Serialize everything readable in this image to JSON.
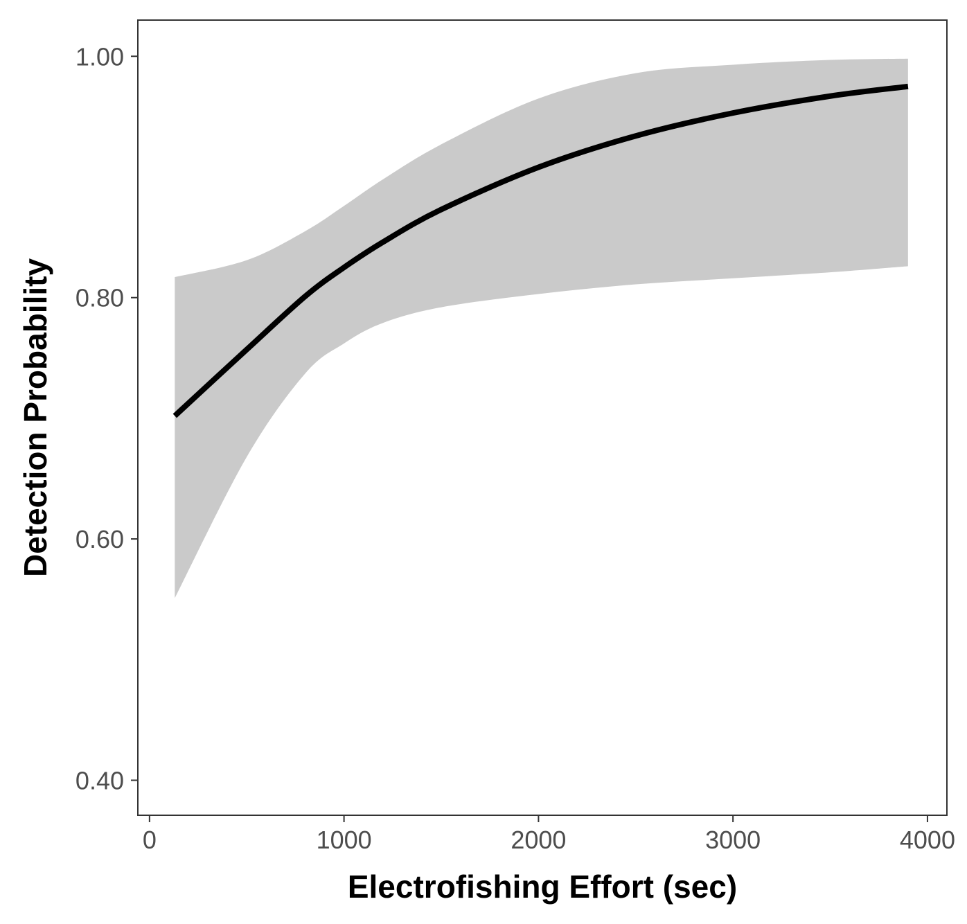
{
  "chart_data": {
    "type": "line",
    "title": "",
    "xlabel": "Electrofishing Effort (sec)",
    "ylabel": "Detection Probability",
    "xlim": [
      -60,
      4100
    ],
    "ylim": [
      0.371,
      1.03
    ],
    "x_ticks": [
      0,
      1000,
      2000,
      3000,
      4000
    ],
    "y_ticks": [
      0.4,
      0.6,
      0.8,
      1.0
    ],
    "x_tick_labels": [
      "0",
      "1000",
      "2000",
      "3000",
      "4000"
    ],
    "y_tick_labels": [
      "0.40",
      "0.60",
      "0.80",
      "1.00"
    ],
    "grid": false,
    "legend": "none",
    "colors": {
      "line": "#000000",
      "ribbon": "#cacaca",
      "panel_border": "#333333",
      "tick_label": "#4d4d4d"
    },
    "series": [
      {
        "x": [
          130,
          500,
          800,
          1000,
          1200,
          1500,
          2000,
          2500,
          3000,
          3500,
          3900
        ],
        "y": [
          0.702,
          0.757,
          0.801,
          0.825,
          0.846,
          0.873,
          0.908,
          0.934,
          0.953,
          0.967,
          0.975
        ],
        "ci_lower": [
          0.551,
          0.668,
          0.737,
          0.762,
          0.779,
          0.792,
          0.803,
          0.811,
          0.816,
          0.821,
          0.826
        ],
        "ci_upper": [
          0.817,
          0.831,
          0.855,
          0.876,
          0.898,
          0.927,
          0.965,
          0.986,
          0.993,
          0.997,
          0.998
        ]
      }
    ]
  }
}
